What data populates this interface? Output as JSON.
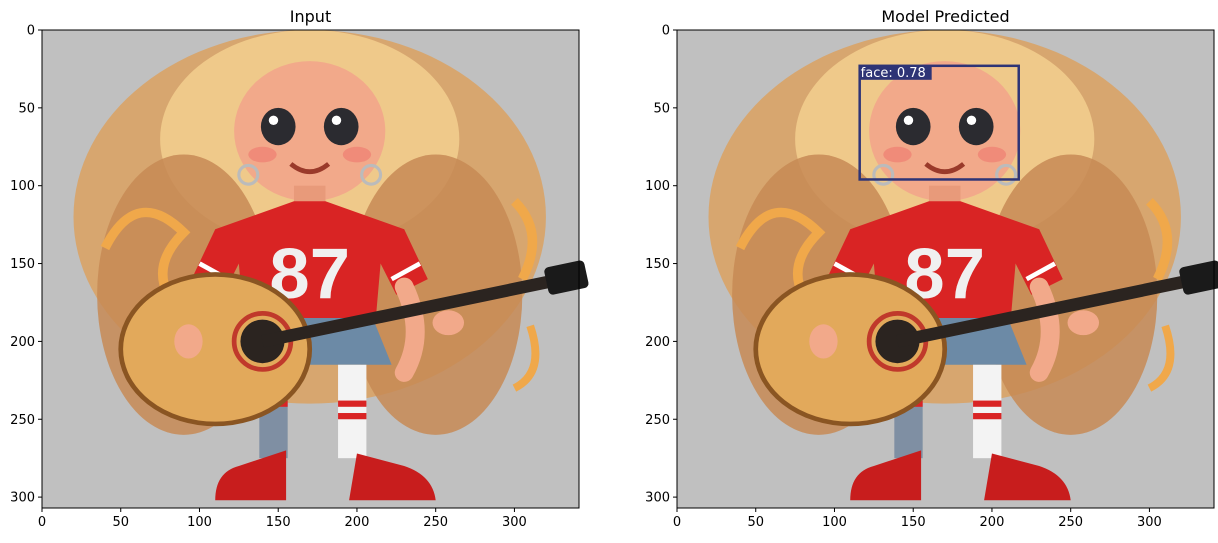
{
  "panels": [
    {
      "title": "Input",
      "xticks": [
        "0",
        "50",
        "100",
        "150",
        "200",
        "250",
        "300"
      ],
      "yticks": [
        "0",
        "50",
        "100",
        "150",
        "200",
        "250",
        "300"
      ]
    },
    {
      "title": "Model Predicted",
      "xticks": [
        "0",
        "50",
        "100",
        "150",
        "200",
        "250",
        "300"
      ],
      "yticks": [
        "0",
        "50",
        "100",
        "150",
        "200",
        "250",
        "300"
      ],
      "detection": {
        "label": "face: 0.78",
        "box": [
          116,
          23,
          217,
          96
        ],
        "color": "#2e3476"
      }
    }
  ],
  "image_extent": {
    "width": 341,
    "height": 307
  },
  "colors": {
    "background": "#c0c0c0",
    "jersey": "#d92424",
    "hair": "#e8b975",
    "guitar": "#e2a95b"
  }
}
